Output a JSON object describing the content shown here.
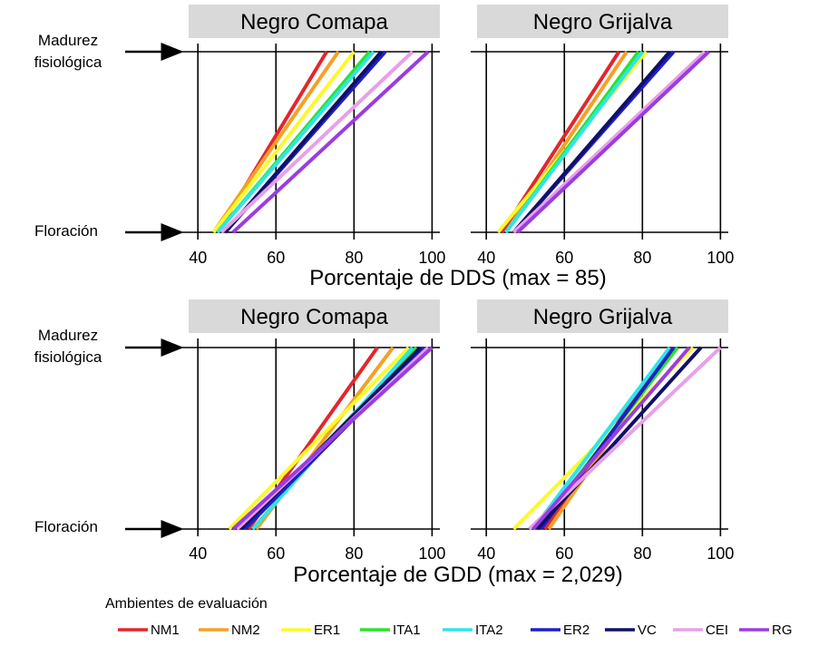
{
  "y_labels": {
    "top": [
      "Madurez",
      "fisiológica"
    ],
    "bottom": "Floración"
  },
  "legend": {
    "title": "Ambientes de evaluación"
  },
  "series_colors": {
    "NM1": "#e3262a",
    "NM2": "#f5a025",
    "ER1": "#fafa2a",
    "ITA1": "#2be32b",
    "ITA2": "#2ee6e6",
    "ER2": "#1f1fc8",
    "VC": "#10106a",
    "CEI": "#e8a0e8",
    "RG": "#9b3ce0"
  },
  "chart_data": [
    {
      "type": "line",
      "title": "Negro Comapa",
      "xlabel": "Porcentaje de DDS (max = 85)",
      "xlim": [
        36,
        102
      ],
      "xticks": [
        40,
        60,
        80,
        100
      ],
      "y_categories": [
        "Floración",
        "Madurez fisiológica"
      ],
      "series": [
        {
          "name": "NM1",
          "values": [
            {
              "x": 45,
              "y": "Floración"
            },
            {
              "x": 73,
              "y": "Madurez fisiológica"
            }
          ]
        },
        {
          "name": "NM2",
          "values": [
            {
              "x": 44,
              "y": "Floración"
            },
            {
              "x": 76,
              "y": "Madurez fisiológica"
            }
          ]
        },
        {
          "name": "ER1",
          "values": [
            {
              "x": 44,
              "y": "Floración"
            },
            {
              "x": 80,
              "y": "Madurez fisiológica"
            }
          ]
        },
        {
          "name": "ITA1",
          "values": [
            {
              "x": 45,
              "y": "Floración"
            },
            {
              "x": 84,
              "y": "Madurez fisiológica"
            }
          ]
        },
        {
          "name": "ITA2",
          "values": [
            {
              "x": 45,
              "y": "Floración"
            },
            {
              "x": 85,
              "y": "Madurez fisiológica"
            }
          ]
        },
        {
          "name": "ER2",
          "values": [
            {
              "x": 47,
              "y": "Floración"
            },
            {
              "x": 88,
              "y": "Madurez fisiológica"
            }
          ]
        },
        {
          "name": "VC",
          "values": [
            {
              "x": 47,
              "y": "Floración"
            },
            {
              "x": 87,
              "y": "Madurez fisiológica"
            }
          ]
        },
        {
          "name": "CEI",
          "values": [
            {
              "x": 46,
              "y": "Floración"
            },
            {
              "x": 95,
              "y": "Madurez fisiológica"
            }
          ]
        },
        {
          "name": "RG",
          "values": [
            {
              "x": 49,
              "y": "Floración"
            },
            {
              "x": 99,
              "y": "Madurez fisiológica"
            }
          ]
        }
      ]
    },
    {
      "type": "line",
      "title": "Negro Grijalva",
      "xlabel": "Porcentaje de DDS (max = 85)",
      "xlim": [
        36,
        102
      ],
      "xticks": [
        40,
        60,
        80,
        100
      ],
      "y_categories": [
        "Floración",
        "Madurez fisiológica"
      ],
      "series": [
        {
          "name": "NM1",
          "values": [
            {
              "x": 44,
              "y": "Floración"
            },
            {
              "x": 74,
              "y": "Madurez fisiológica"
            }
          ]
        },
        {
          "name": "NM2",
          "values": [
            {
              "x": 45,
              "y": "Floración"
            },
            {
              "x": 76,
              "y": "Madurez fisiológica"
            }
          ]
        },
        {
          "name": "ER1",
          "values": [
            {
              "x": 43,
              "y": "Floración"
            },
            {
              "x": 81,
              "y": "Madurez fisiológica"
            }
          ]
        },
        {
          "name": "ITA1",
          "values": [
            {
              "x": 45,
              "y": "Floración"
            },
            {
              "x": 79,
              "y": "Madurez fisiológica"
            }
          ]
        },
        {
          "name": "ITA2",
          "values": [
            {
              "x": 45,
              "y": "Floración"
            },
            {
              "x": 80,
              "y": "Madurez fisiológica"
            }
          ]
        },
        {
          "name": "ER2",
          "values": [
            {
              "x": 47,
              "y": "Floración"
            },
            {
              "x": 88,
              "y": "Madurez fisiológica"
            }
          ]
        },
        {
          "name": "VC",
          "values": [
            {
              "x": 47,
              "y": "Floración"
            },
            {
              "x": 87,
              "y": "Madurez fisiológica"
            }
          ]
        },
        {
          "name": "CEI",
          "values": [
            {
              "x": 47,
              "y": "Floración"
            },
            {
              "x": 96,
              "y": "Madurez fisiológica"
            }
          ]
        },
        {
          "name": "RG",
          "values": [
            {
              "x": 48,
              "y": "Floración"
            },
            {
              "x": 97,
              "y": "Madurez fisiológica"
            }
          ]
        }
      ]
    },
    {
      "type": "line",
      "title": "Negro Comapa",
      "xlabel": "Porcentaje de GDD (max =  2,029)",
      "xlim": [
        36,
        102
      ],
      "xticks": [
        40,
        60,
        80,
        100
      ],
      "y_categories": [
        "Floración",
        "Madurez fisiológica"
      ],
      "series": [
        {
          "name": "NM1",
          "values": [
            {
              "x": 53,
              "y": "Floración"
            },
            {
              "x": 86,
              "y": "Madurez fisiológica"
            }
          ]
        },
        {
          "name": "NM2",
          "values": [
            {
              "x": 55,
              "y": "Floración"
            },
            {
              "x": 90,
              "y": "Madurez fisiológica"
            }
          ]
        },
        {
          "name": "ER1",
          "values": [
            {
              "x": 48,
              "y": "Floración"
            },
            {
              "x": 94,
              "y": "Madurez fisiológica"
            }
          ]
        },
        {
          "name": "ITA1",
          "values": [
            {
              "x": 52,
              "y": "Floración"
            },
            {
              "x": 96,
              "y": "Madurez fisiológica"
            }
          ]
        },
        {
          "name": "ITA2",
          "values": [
            {
              "x": 54,
              "y": "Floración"
            },
            {
              "x": 95,
              "y": "Madurez fisiológica"
            }
          ]
        },
        {
          "name": "ER2",
          "values": [
            {
              "x": 52,
              "y": "Floración"
            },
            {
              "x": 98,
              "y": "Madurez fisiológica"
            }
          ]
        },
        {
          "name": "VC",
          "values": [
            {
              "x": 51,
              "y": "Floración"
            },
            {
              "x": 97,
              "y": "Madurez fisiológica"
            }
          ]
        },
        {
          "name": "CEI",
          "values": [
            {
              "x": 50,
              "y": "Floración"
            },
            {
              "x": 99,
              "y": "Madurez fisiológica"
            }
          ]
        },
        {
          "name": "RG",
          "values": [
            {
              "x": 49,
              "y": "Floración"
            },
            {
              "x": 100,
              "y": "Madurez fisiológica"
            }
          ]
        }
      ]
    },
    {
      "type": "line",
      "title": "Negro Grijalva",
      "xlabel": "Porcentaje de GDD (max =  2,029)",
      "xlim": [
        36,
        102
      ],
      "xticks": [
        40,
        60,
        80,
        100
      ],
      "y_categories": [
        "Floración",
        "Madurez fisiológica"
      ],
      "series": [
        {
          "name": "NM1",
          "values": [
            {
              "x": 55,
              "y": "Floración"
            },
            {
              "x": 87,
              "y": "Madurez fisiológica"
            }
          ]
        },
        {
          "name": "NM2",
          "values": [
            {
              "x": 56,
              "y": "Floración"
            },
            {
              "x": 88,
              "y": "Madurez fisiológica"
            }
          ]
        },
        {
          "name": "ER1",
          "values": [
            {
              "x": 47,
              "y": "Floración"
            },
            {
              "x": 93,
              "y": "Madurez fisiológica"
            }
          ]
        },
        {
          "name": "ITA1",
          "values": [
            {
              "x": 53,
              "y": "Floración"
            },
            {
              "x": 89,
              "y": "Madurez fisiológica"
            }
          ]
        },
        {
          "name": "ITA2",
          "values": [
            {
              "x": 52,
              "y": "Floración"
            },
            {
              "x": 87,
              "y": "Madurez fisiológica"
            }
          ]
        },
        {
          "name": "ER2",
          "values": [
            {
              "x": 54,
              "y": "Floración"
            },
            {
              "x": 88,
              "y": "Madurez fisiológica"
            }
          ]
        },
        {
          "name": "VC",
          "values": [
            {
              "x": 53,
              "y": "Floración"
            },
            {
              "x": 95,
              "y": "Madurez fisiológica"
            }
          ]
        },
        {
          "name": "CEI",
          "values": [
            {
              "x": 51,
              "y": "Floración"
            },
            {
              "x": 100,
              "y": "Madurez fisiológica"
            }
          ]
        },
        {
          "name": "RG",
          "values": [
            {
              "x": 52,
              "y": "Floración"
            },
            {
              "x": 92,
              "y": "Madurez fisiológica"
            }
          ]
        }
      ]
    }
  ]
}
